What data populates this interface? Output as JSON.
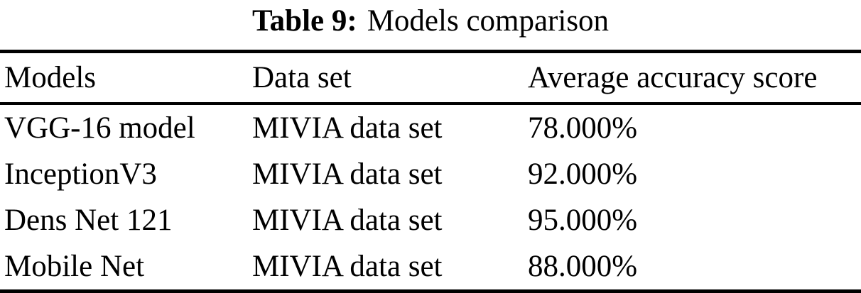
{
  "caption": {
    "label": "Table 9:",
    "title": "Models comparison"
  },
  "table": {
    "columns": [
      "Models",
      "Data set",
      "Average accuracy score"
    ],
    "rows": [
      [
        "VGG-16 model",
        "MIVIA data set",
        "78.000%"
      ],
      [
        "InceptionV3",
        "MIVIA data set",
        "92.000%"
      ],
      [
        "Dens Net 121",
        "MIVIA data set",
        "95.000%"
      ],
      [
        "Mobile Net",
        "MIVIA data set",
        "88.000%"
      ]
    ]
  },
  "colors": {
    "text": "#000000",
    "background": "#ffffff",
    "rule": "#000000"
  }
}
